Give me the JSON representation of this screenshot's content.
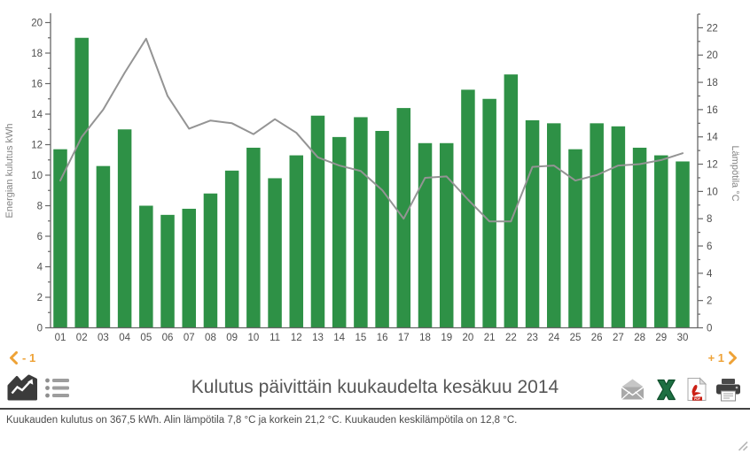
{
  "chart_data": {
    "type": "bar",
    "title": "Kulutus päivittäin kuukaudelta kesäkuu 2014",
    "categories": [
      "01",
      "02",
      "03",
      "04",
      "05",
      "06",
      "07",
      "08",
      "09",
      "10",
      "11",
      "12",
      "13",
      "14",
      "15",
      "16",
      "17",
      "18",
      "19",
      "20",
      "21",
      "22",
      "23",
      "24",
      "25",
      "26",
      "27",
      "28",
      "29",
      "30"
    ],
    "series": [
      {
        "name": "Energian kulutus kWh",
        "type": "bar",
        "axis": "left",
        "color": "#2e9146",
        "values": [
          11.7,
          19.0,
          10.6,
          13.0,
          8.0,
          7.4,
          7.8,
          8.8,
          10.3,
          11.8,
          9.8,
          11.3,
          13.9,
          12.5,
          13.8,
          12.9,
          14.4,
          12.1,
          12.1,
          15.6,
          15.0,
          16.6,
          13.6,
          13.4,
          11.7,
          13.4,
          13.2,
          11.8,
          11.3,
          10.9
        ]
      },
      {
        "name": "Lämpötila °C",
        "type": "line",
        "axis": "right",
        "color": "#949494",
        "values": [
          10.8,
          14.0,
          16.0,
          18.7,
          21.2,
          17.0,
          14.6,
          15.2,
          15.0,
          14.2,
          15.3,
          14.3,
          12.5,
          11.9,
          11.5,
          10.1,
          8.0,
          11.0,
          11.1,
          9.4,
          7.8,
          7.8,
          11.8,
          11.9,
          10.8,
          11.2,
          11.9,
          12.0,
          12.3,
          12.8
        ]
      }
    ],
    "left_axis": {
      "label": "Energian kulutus kWh",
      "min": 0,
      "max": 20,
      "label_step": 2,
      "minor_step": 1
    },
    "right_axis": {
      "label": "Lämpötila °C",
      "min": 0,
      "max": 23,
      "label_max": 22,
      "label_step": 2,
      "minor_step": 1
    },
    "grid": false,
    "legend": "none",
    "xlabel": "",
    "ylabel": "Energian kulutus kWh",
    "y2label": "Lämpötila °C"
  },
  "nav": {
    "prev": "- 1",
    "next": "+ 1",
    "accent_color": "#eea236"
  },
  "toolbar": {
    "left_icons": [
      "area-chart-icon",
      "list-view-icon"
    ],
    "right_icons": [
      "email-icon",
      "excel-export-icon",
      "pdf-export-icon",
      "print-icon"
    ]
  },
  "summary": {
    "text": "Kuukauden kulutus on 367,5 kWh. Alin lämpötila 7,8 °C ja korkein 21,2 °C. Kuukauden keskilämpötila on 12,8 °C."
  },
  "colors": {
    "bar": "#2e9146",
    "line": "#949494",
    "axis": "#666666",
    "tick_label": "#4f4f4f",
    "axis_title": "#848484",
    "title": "#565656",
    "accent": "#eea236",
    "divider": "#424242"
  }
}
